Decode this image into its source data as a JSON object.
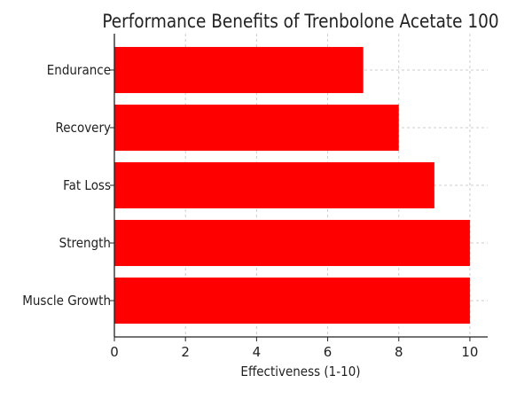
{
  "chart_data": {
    "type": "bar",
    "orientation": "horizontal",
    "title": "Performance Benefits of Trenbolone Acetate 100",
    "xlabel": "Effectiveness (1-10)",
    "ylabel": "",
    "categories": [
      "Muscle Growth",
      "Strength",
      "Fat Loss",
      "Recovery",
      "Endurance"
    ],
    "values": [
      10,
      10,
      9,
      8,
      7
    ],
    "xlim": [
      0,
      10.5
    ],
    "xticks": [
      0,
      2,
      4,
      6,
      8,
      10
    ],
    "grid": true,
    "bar_color": "#ff0000"
  }
}
